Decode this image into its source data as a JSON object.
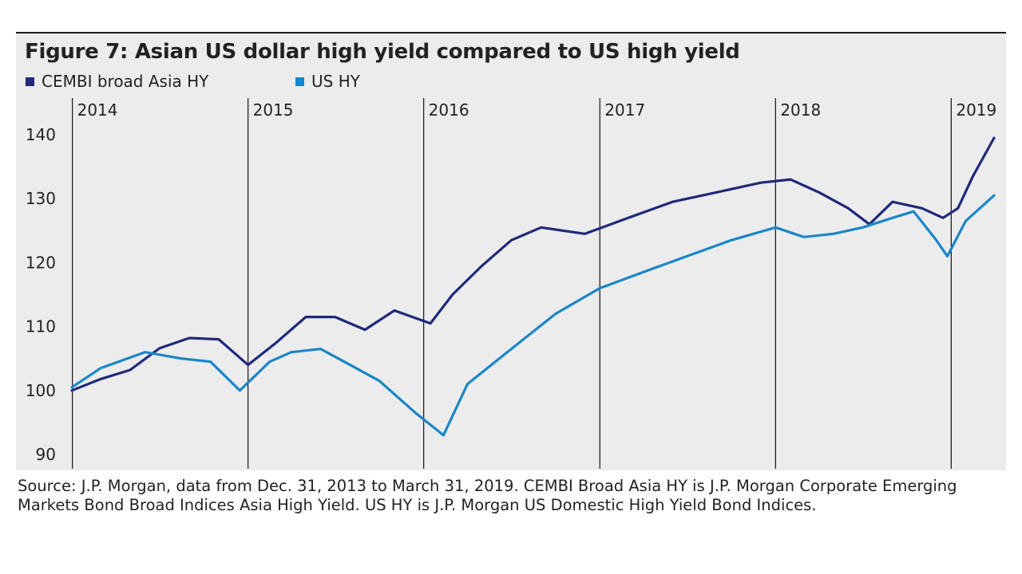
{
  "chart_data": {
    "type": "line",
    "title": "Figure 7: Asian US dollar high yield compared to US high yield",
    "ylim": [
      90,
      140
    ],
    "yticks": [
      90,
      100,
      110,
      120,
      130,
      140
    ],
    "ytick_labels": [
      "90",
      "100",
      "110",
      "120",
      "130",
      "140"
    ],
    "xlim": [
      "2013-12-31",
      "2019-03-31"
    ],
    "year_markers": [
      {
        "label": "2014",
        "date": "2014-01-01"
      },
      {
        "label": "2015",
        "date": "2015-01-01"
      },
      {
        "label": "2016",
        "date": "2016-01-01"
      },
      {
        "label": "2017",
        "date": "2017-01-01"
      },
      {
        "label": "2018",
        "date": "2018-01-01"
      },
      {
        "label": "2019",
        "date": "2019-01-01"
      }
    ],
    "legend_position": "top-left",
    "grid": false,
    "series": [
      {
        "name": "CEMBI broad Asia HY",
        "color": "#1f2a7a",
        "points": [
          [
            "2013-12-31",
            100.0
          ],
          [
            "2014-03-01",
            101.8
          ],
          [
            "2014-05-01",
            103.2
          ],
          [
            "2014-07-01",
            106.6
          ],
          [
            "2014-09-01",
            108.2
          ],
          [
            "2014-11-01",
            108.0
          ],
          [
            "2015-01-01",
            104.0
          ],
          [
            "2015-03-01",
            107.5
          ],
          [
            "2015-05-01",
            111.5
          ],
          [
            "2015-07-01",
            111.5
          ],
          [
            "2015-09-01",
            109.5
          ],
          [
            "2015-11-01",
            112.5
          ],
          [
            "2016-01-15",
            110.5
          ],
          [
            "2016-03-01",
            115.0
          ],
          [
            "2016-05-01",
            119.5
          ],
          [
            "2016-07-01",
            123.5
          ],
          [
            "2016-09-01",
            125.5
          ],
          [
            "2016-12-01",
            124.5
          ],
          [
            "2017-03-01",
            127.0
          ],
          [
            "2017-06-01",
            129.5
          ],
          [
            "2017-09-01",
            131.0
          ],
          [
            "2017-12-01",
            132.5
          ],
          [
            "2018-02-01",
            133.0
          ],
          [
            "2018-04-01",
            131.0
          ],
          [
            "2018-06-01",
            128.5
          ],
          [
            "2018-07-15",
            126.0
          ],
          [
            "2018-09-01",
            129.5
          ],
          [
            "2018-11-01",
            128.5
          ],
          [
            "2018-12-15",
            127.0
          ],
          [
            "2019-01-15",
            128.5
          ],
          [
            "2019-02-15",
            133.5
          ],
          [
            "2019-03-31",
            139.5
          ]
        ]
      },
      {
        "name": "US HY",
        "color": "#1a86c8",
        "points": [
          [
            "2013-12-31",
            100.5
          ],
          [
            "2014-03-01",
            103.5
          ],
          [
            "2014-06-01",
            106.0
          ],
          [
            "2014-08-15",
            105.0
          ],
          [
            "2014-10-15",
            104.5
          ],
          [
            "2014-12-15",
            100.0
          ],
          [
            "2015-02-15",
            104.5
          ],
          [
            "2015-04-01",
            106.0
          ],
          [
            "2015-06-01",
            106.5
          ],
          [
            "2015-08-01",
            104.0
          ],
          [
            "2015-10-01",
            101.5
          ],
          [
            "2015-12-15",
            96.5
          ],
          [
            "2016-02-11",
            93.0
          ],
          [
            "2016-04-01",
            101.0
          ],
          [
            "2016-07-01",
            106.5
          ],
          [
            "2016-10-01",
            112.0
          ],
          [
            "2017-01-01",
            116.0
          ],
          [
            "2017-04-01",
            118.5
          ],
          [
            "2017-07-01",
            121.0
          ],
          [
            "2017-10-01",
            123.5
          ],
          [
            "2018-01-01",
            125.5
          ],
          [
            "2018-03-01",
            124.0
          ],
          [
            "2018-05-01",
            124.5
          ],
          [
            "2018-07-01",
            125.5
          ],
          [
            "2018-09-01",
            127.0
          ],
          [
            "2018-10-15",
            128.0
          ],
          [
            "2018-12-01",
            123.5
          ],
          [
            "2018-12-24",
            121.0
          ],
          [
            "2019-01-31",
            126.5
          ],
          [
            "2019-03-31",
            130.5
          ]
        ]
      }
    ]
  },
  "source_text": "Source: J.P. Morgan, data from Dec. 31, 2013 to March 31, 2019. CEMBI Broad Asia HY is J.P. Morgan Corporate Emerging Markets Bond Broad Indices Asia High Yield. US HY is J.P. Morgan US Domestic High Yield Bond Indices."
}
